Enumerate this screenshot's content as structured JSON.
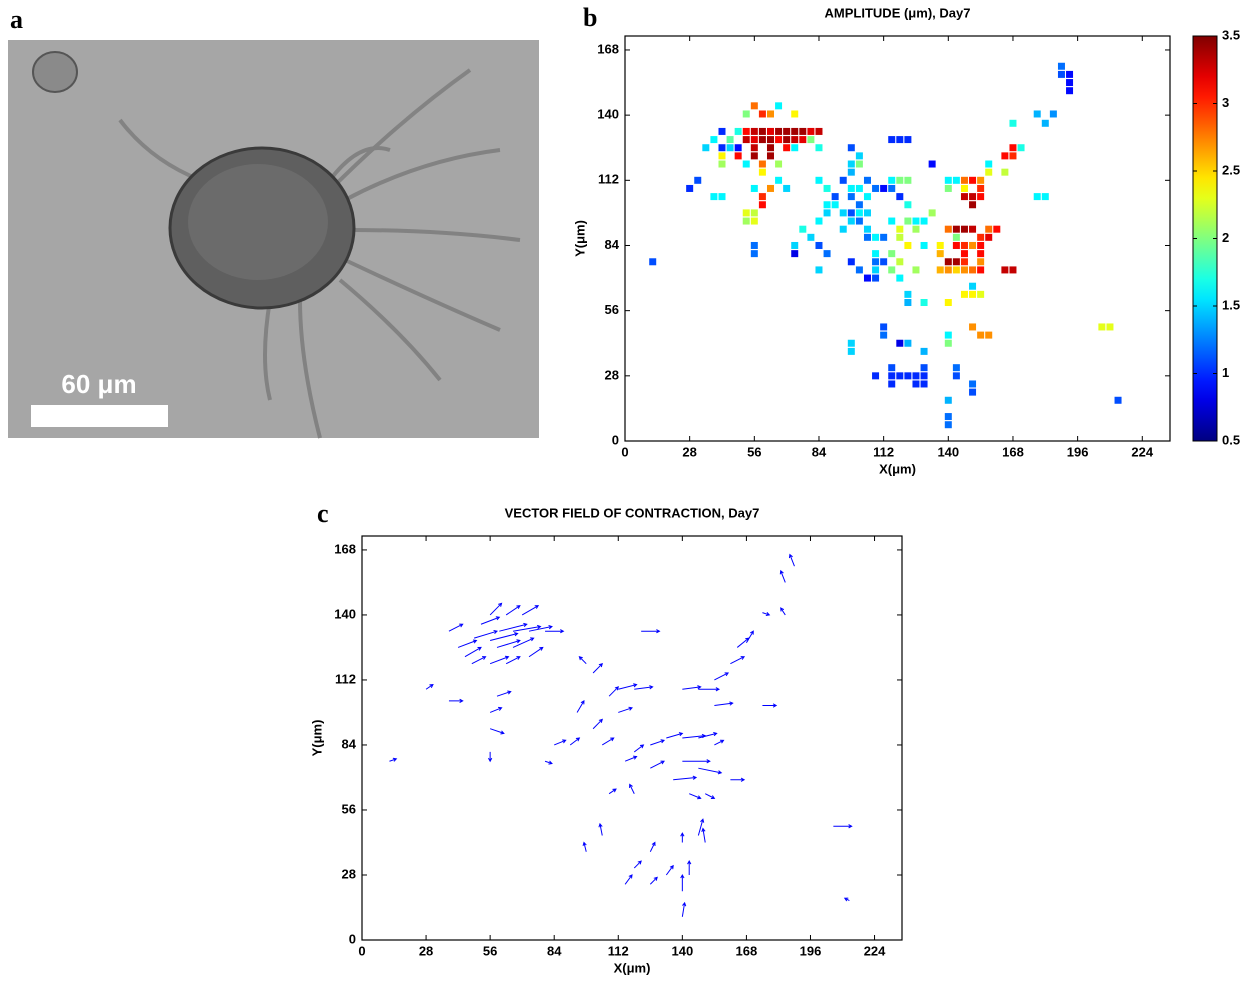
{
  "panel_labels": [
    "a",
    "b",
    "c"
  ],
  "micrograph": {
    "scale_bar_label": "60 μm"
  },
  "chart_data": [
    {
      "type": "scatter",
      "title": "AMPLITUDE (μm), Day7",
      "x_label": "X(μm)",
      "y_label": "Y(μm)",
      "marker": "square",
      "colormap": "jet",
      "clim": [
        0.5,
        3.5
      ],
      "cticks": [
        0.5,
        1,
        1.5,
        2,
        2.5,
        3,
        3.5
      ],
      "xlim": [
        0,
        236
      ],
      "ylim": [
        0,
        174
      ],
      "xticks": [
        0,
        28,
        56,
        84,
        112,
        140,
        168,
        196,
        224
      ],
      "yticks": [
        0,
        28,
        56,
        84,
        112,
        140,
        168
      ],
      "x": [
        56,
        66.5,
        52.5,
        59.5,
        63,
        73.5,
        178.5,
        185.5,
        42,
        49,
        52.5,
        56,
        59.5,
        63,
        66.5,
        70,
        73.5,
        77,
        80.5,
        84,
        38.5,
        45.5,
        52.5,
        56,
        59.5,
        63,
        66.5,
        70,
        73.5,
        77,
        80.5,
        115.5,
        119,
        122.5,
        35,
        42,
        45.5,
        49,
        56,
        63,
        70,
        73.5,
        84,
        98,
        171.5,
        168,
        42,
        49,
        56,
        63,
        101.5,
        164.5,
        168,
        42,
        52.5,
        59.5,
        66.5,
        98,
        101.5,
        133,
        157.5,
        59.5,
        98,
        157.5,
        164.5,
        31.5,
        66.5,
        84,
        94.5,
        105,
        115.5,
        119,
        122.5,
        140,
        143.5,
        147,
        150.5,
        154,
        28,
        56,
        63,
        70,
        87.5,
        98,
        101.5,
        108.5,
        112,
        115.5,
        140,
        147,
        154,
        38.5,
        42,
        59.5,
        91,
        98,
        105,
        119,
        147,
        150.5,
        154,
        178.5,
        182,
        59.5,
        87.5,
        91,
        101.5,
        122.5,
        150.5,
        52.5,
        56,
        87.5,
        94.5,
        98,
        101.5,
        105,
        133,
        52.5,
        56,
        84,
        98,
        101.5,
        115.5,
        122.5,
        126,
        129.5,
        77,
        94.5,
        105,
        119,
        126,
        140,
        143.5,
        147,
        150.5,
        157.5,
        161,
        80.5,
        105,
        108.5,
        112,
        119,
        143.5,
        154,
        157.5,
        56,
        73.5,
        84,
        122.5,
        129.5,
        136.5,
        143.5,
        147,
        150.5,
        154,
        56,
        73.5,
        87.5,
        108.5,
        115.5,
        136.5,
        147,
        154,
        12,
        98,
        108.5,
        112,
        119,
        140,
        143.5,
        147,
        154,
        84,
        101.5,
        108.5,
        115.5,
        126,
        136.5,
        140,
        143.5,
        147,
        150.5,
        154,
        164.5,
        168,
        105,
        108.5,
        119,
        150.5,
        122.5,
        147,
        150.5,
        154,
        122.5,
        129.5,
        140,
        112,
        150.5,
        206.5,
        210,
        112,
        140,
        154,
        157.5,
        98,
        119,
        122.5,
        140,
        98,
        129.5,
        115.5,
        129.5,
        143.5,
        108.5,
        115.5,
        119,
        122.5,
        126,
        129.5,
        143.5,
        115.5,
        126,
        129.5,
        150.5,
        150.5,
        140,
        213.5,
        140,
        140,
        189,
        189,
        192.5,
        192.5,
        192.5,
        182,
        168
      ],
      "values": [
        144,
        144,
        140.5,
        140.5,
        140.5,
        140.5,
        140.5,
        140.5,
        133,
        133,
        133,
        133,
        133,
        133,
        133,
        133,
        133,
        133,
        133,
        133,
        129.5,
        129.5,
        129.5,
        129.5,
        129.5,
        129.5,
        129.5,
        129.5,
        129.5,
        129.5,
        129.5,
        129.5,
        129.5,
        129.5,
        126,
        126,
        126,
        126,
        126,
        126,
        126,
        126,
        126,
        126,
        126,
        126,
        122.5,
        122.5,
        122.5,
        122.5,
        122.5,
        122.5,
        122.5,
        119,
        119,
        119,
        119,
        119,
        119,
        119,
        119,
        115.5,
        115.5,
        115.5,
        115.5,
        112,
        112,
        112,
        112,
        112,
        112,
        112,
        112,
        112,
        112,
        112,
        112,
        112,
        108.5,
        108.5,
        108.5,
        108.5,
        108.5,
        108.5,
        108.5,
        108.5,
        108.5,
        108.5,
        108.5,
        108.5,
        108.5,
        105,
        105,
        105,
        105,
        105,
        105,
        105,
        105,
        105,
        105,
        105,
        105,
        101.5,
        101.5,
        101.5,
        101.5,
        101.5,
        101.5,
        98,
        98,
        98,
        98,
        98,
        98,
        98,
        98,
        94.5,
        94.5,
        94.5,
        94.5,
        94.5,
        94.5,
        94.5,
        94.5,
        94.5,
        91,
        91,
        91,
        91,
        91,
        91,
        91,
        91,
        91,
        91,
        91,
        87.5,
        87.5,
        87.5,
        87.5,
        87.5,
        87.5,
        87.5,
        87.5,
        84,
        84,
        84,
        84,
        84,
        84,
        84,
        84,
        84,
        84,
        80.5,
        80.5,
        80.5,
        80.5,
        80.5,
        80.5,
        80.5,
        80.5,
        77,
        77,
        77,
        77,
        77,
        77,
        77,
        77,
        77,
        73.5,
        73.5,
        73.5,
        73.5,
        73.5,
        73.5,
        73.5,
        73.5,
        73.5,
        73.5,
        73.5,
        73.5,
        73.5,
        70,
        70,
        70,
        66.5,
        63,
        63,
        63,
        63,
        59.5,
        59.5,
        59.5,
        49,
        49,
        49,
        49,
        45.5,
        45.5,
        45.5,
        45.5,
        42,
        42,
        42,
        42,
        38.5,
        38.5,
        31.5,
        31.5,
        31.5,
        28,
        28,
        28,
        28,
        28,
        28,
        28,
        24.5,
        24.5,
        24.5,
        24.5,
        21,
        17.5,
        17.5,
        10.5,
        7,
        161,
        157.5,
        157.5,
        154,
        150.5,
        136.5,
        136.5
      ],
      "amplitude": [
        2.8,
        1.6,
        2.0,
        3.0,
        2.7,
        2.4,
        1.4,
        1.3,
        1.0,
        1.7,
        3.1,
        3.3,
        3.4,
        3.2,
        3.4,
        3.4,
        3.4,
        3.4,
        3.2,
        3.3,
        1.6,
        1.9,
        3.3,
        3.2,
        3.4,
        3.4,
        3.1,
        3.4,
        3.3,
        3.2,
        2.0,
        1.0,
        1.0,
        1.0,
        1.5,
        1.0,
        1.5,
        0.9,
        3.3,
        3.4,
        3.1,
        1.6,
        1.7,
        1.1,
        1.7,
        3.1,
        2.4,
        3.1,
        3.4,
        3.4,
        1.5,
        3.1,
        3.0,
        2.1,
        1.6,
        2.8,
        2.1,
        1.5,
        2.0,
        0.9,
        1.6,
        2.4,
        1.4,
        2.3,
        2.2,
        1.1,
        1.6,
        1.6,
        1.1,
        1.2,
        1.6,
        2.0,
        2.0,
        1.6,
        1.6,
        2.8,
        3.1,
        2.7,
        1.0,
        1.6,
        2.7,
        1.5,
        1.7,
        1.6,
        1.6,
        1.2,
        0.9,
        1.2,
        2.0,
        2.4,
        3.0,
        1.6,
        1.6,
        3.0,
        1.1,
        1.2,
        1.6,
        1.0,
        3.3,
        3.3,
        3.1,
        1.6,
        1.6,
        3.1,
        1.6,
        1.6,
        1.2,
        1.7,
        3.4,
        2.3,
        2.2,
        1.5,
        1.5,
        1.1,
        1.6,
        1.5,
        2.1,
        2.1,
        2.3,
        1.6,
        1.5,
        1.2,
        1.6,
        2.0,
        1.6,
        1.6,
        1.7,
        1.5,
        1.5,
        2.3,
        2.1,
        2.8,
        3.4,
        3.4,
        3.3,
        2.8,
        3.1,
        1.5,
        1.2,
        1.6,
        1.2,
        2.2,
        2.0,
        3.0,
        3.2,
        1.2,
        1.5,
        1.1,
        2.4,
        1.6,
        2.4,
        3.1,
        3.0,
        2.7,
        3.1,
        1.2,
        0.8,
        1.2,
        1.6,
        2.0,
        2.6,
        3.1,
        3.1,
        1.1,
        1.0,
        1.2,
        1.1,
        2.2,
        3.4,
        3.4,
        3.0,
        2.7,
        1.5,
        1.2,
        1.5,
        2.0,
        2.1,
        2.6,
        2.7,
        2.5,
        2.7,
        2.8,
        3.1,
        3.3,
        3.3,
        0.9,
        1.1,
        1.6,
        1.5,
        1.5,
        2.4,
        2.4,
        2.3,
        1.4,
        1.7,
        2.4,
        1.1,
        2.7,
        2.3,
        2.3,
        1.2,
        1.6,
        2.7,
        2.7,
        1.5,
        0.8,
        1.4,
        2.0,
        1.5,
        1.4,
        1.1,
        1.1,
        1.2,
        1.0,
        1.0,
        1.0,
        1.0,
        1.0,
        1.0,
        1.1,
        1.0,
        1.0,
        1.0,
        1.2,
        1.1,
        1.4,
        1.1,
        1.2,
        1.2,
        1.2,
        1.1,
        0.9,
        0.9,
        0.9,
        1.4,
        1.7
      ]
    },
    {
      "type": "quiver",
      "title": "VECTOR FIELD OF CONTRACTION, Day7",
      "x_label": "X(μm)",
      "y_label": "Y(μm)",
      "color": "#0000ff",
      "xlim": [
        0,
        236
      ],
      "ylim": [
        0,
        174
      ],
      "xticks": [
        0,
        28,
        56,
        84,
        112,
        140,
        168,
        196,
        224
      ],
      "yticks": [
        0,
        28,
        56,
        84,
        112,
        140,
        168
      ],
      "x": [
        38,
        42,
        45,
        48,
        49,
        56,
        60,
        66,
        73,
        80,
        56,
        63,
        70,
        52,
        59,
        66,
        73,
        56,
        63,
        38,
        28,
        12,
        59,
        56,
        56,
        56,
        80,
        84,
        91,
        94,
        101,
        105,
        112,
        112,
        119,
        101,
        98,
        108,
        119,
        126,
        133,
        140,
        147,
        140,
        147,
        161,
        136,
        126,
        115,
        154,
        154,
        147,
        140,
        154,
        161,
        164,
        168,
        175,
        185,
        189,
        185,
        175,
        122,
        206,
        213,
        140,
        140,
        126,
        133,
        143,
        147,
        150,
        105,
        98,
        115,
        119,
        126,
        140,
        119,
        108,
        143,
        150
      ],
      "values": [
        133,
        126,
        122,
        119,
        130,
        129,
        133,
        133,
        133,
        133,
        140,
        140,
        140,
        136,
        126,
        126,
        122,
        119,
        119,
        103,
        108,
        77,
        105,
        98,
        91,
        81,
        77,
        84,
        84,
        98,
        91,
        84,
        98,
        108,
        108,
        115,
        119,
        105,
        81,
        84,
        87,
        87,
        87,
        77,
        74,
        69,
        69,
        74,
        77,
        84,
        101,
        108,
        108,
        112,
        119,
        126,
        128,
        101,
        154,
        161,
        140,
        141,
        133,
        49,
        17,
        21,
        10,
        24,
        28,
        28,
        45,
        42,
        45,
        38,
        24,
        31,
        38,
        42,
        63,
        63,
        63,
        63
      ],
      "u": [
        6,
        8,
        7,
        6,
        10,
        12,
        12,
        12,
        10,
        8,
        5,
        6,
        7,
        8,
        10,
        9,
        6,
        8,
        6,
        6,
        3,
        3,
        6,
        5,
        6,
        0,
        3,
        5,
        4,
        3,
        4,
        5,
        6,
        8,
        8,
        4,
        -3,
        4,
        4,
        6,
        7,
        10,
        8,
        12,
        10,
        6,
        10,
        6,
        5,
        4,
        8,
        9,
        8,
        6,
        6,
        5,
        3,
        6,
        -2,
        -2,
        -2,
        3,
        8,
        8,
        -2,
        0,
        1,
        3,
        3,
        0,
        2,
        -1,
        -1,
        -1,
        3,
        3,
        2,
        0,
        -2,
        3,
        5,
        4
      ],
      "v": [
        3,
        3,
        4,
        3,
        3,
        3,
        3,
        2,
        2,
        0,
        5,
        4,
        4,
        3,
        3,
        4,
        4,
        3,
        3,
        0,
        2,
        1,
        2,
        2,
        -2,
        -4,
        -1,
        2,
        3,
        5,
        4,
        3,
        2,
        2,
        1,
        4,
        3,
        4,
        3,
        2,
        2,
        1,
        2,
        0,
        -2,
        0,
        1,
        3,
        2,
        2,
        1,
        0,
        1,
        3,
        3,
        4,
        5,
        0,
        5,
        5,
        3,
        -1,
        0,
        0,
        1,
        7,
        6,
        3,
        4,
        6,
        7,
        6,
        5,
        4,
        4,
        3,
        4,
        4,
        4,
        2,
        -2,
        -2
      ]
    }
  ]
}
